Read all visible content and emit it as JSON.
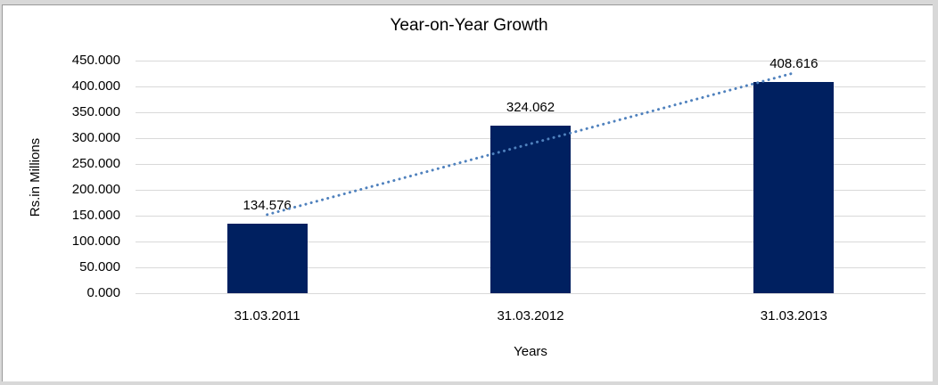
{
  "chart_data": {
    "type": "bar",
    "title": "Year-on-Year Growth",
    "categories": [
      "31.03.2011",
      "31.03.2012",
      "31.03.2013"
    ],
    "values": [
      134.576,
      324.062,
      408.616
    ],
    "data_labels": [
      "134.576",
      "324.062",
      "408.616"
    ],
    "xlabel": "Years",
    "ylabel": "Rs.in Millions",
    "ylim": [
      0,
      450
    ],
    "ytick_step": 50,
    "ytick_labels": [
      "0.000",
      "50.000",
      "100.000",
      "150.000",
      "200.000",
      "250.000",
      "300.000",
      "350.000",
      "400.000",
      "450.000"
    ],
    "grid": true,
    "legend": "none",
    "trendline": {
      "type": "linear",
      "style": "dotted",
      "color": "#4f81bd"
    },
    "colors": {
      "bar": "#002060",
      "gridline": "#d9d9d9",
      "text": "#000000",
      "frame_outer": "#d8d8d8",
      "frame_inner": "#9a9a9a"
    }
  }
}
